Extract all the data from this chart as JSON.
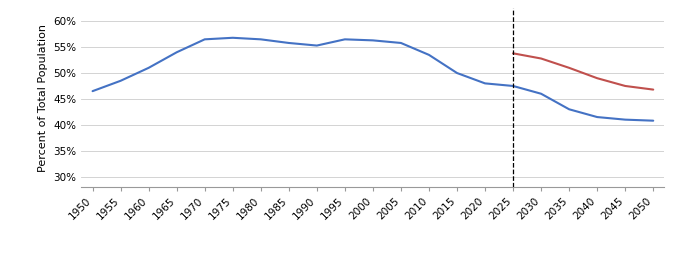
{
  "blue_x": [
    1950,
    1955,
    1960,
    1965,
    1970,
    1975,
    1980,
    1985,
    1990,
    1995,
    2000,
    2005,
    2010,
    2015,
    2020,
    2025,
    2030,
    2035,
    2040,
    2045,
    2050
  ],
  "blue_y": [
    46.5,
    48.5,
    51.0,
    54.0,
    56.5,
    56.8,
    56.5,
    55.8,
    55.3,
    56.5,
    56.3,
    55.8,
    53.5,
    50.0,
    48.0,
    47.5,
    46.0,
    43.0,
    41.5,
    41.0,
    40.8
  ],
  "red_x": [
    2025,
    2030,
    2035,
    2040,
    2045,
    2050
  ],
  "red_y": [
    53.8,
    52.8,
    51.0,
    49.0,
    47.5,
    46.8
  ],
  "dashed_x": 2025,
  "blue_color": "#4472C4",
  "red_color": "#C0504D",
  "ylabel": "Percent of Total Population",
  "ytick_vals": [
    30,
    35,
    40,
    45,
    50,
    55,
    60
  ],
  "ytick_labels": [
    "30%",
    "35%",
    "40%",
    "45%",
    "50%",
    "55%",
    "60%"
  ],
  "xticks": [
    1950,
    1955,
    1960,
    1965,
    1970,
    1975,
    1980,
    1985,
    1990,
    1995,
    2000,
    2005,
    2010,
    2015,
    2020,
    2025,
    2030,
    2035,
    2040,
    2045,
    2050
  ],
  "ylim_bottom": 28,
  "ylim_top": 62.5,
  "xlim_left": 1948,
  "xlim_right": 2052,
  "grid_color": "#CCCCCC",
  "line_width": 1.5,
  "tick_fontsize": 7.5,
  "ylabel_fontsize": 8,
  "legend_fontsize": 8
}
